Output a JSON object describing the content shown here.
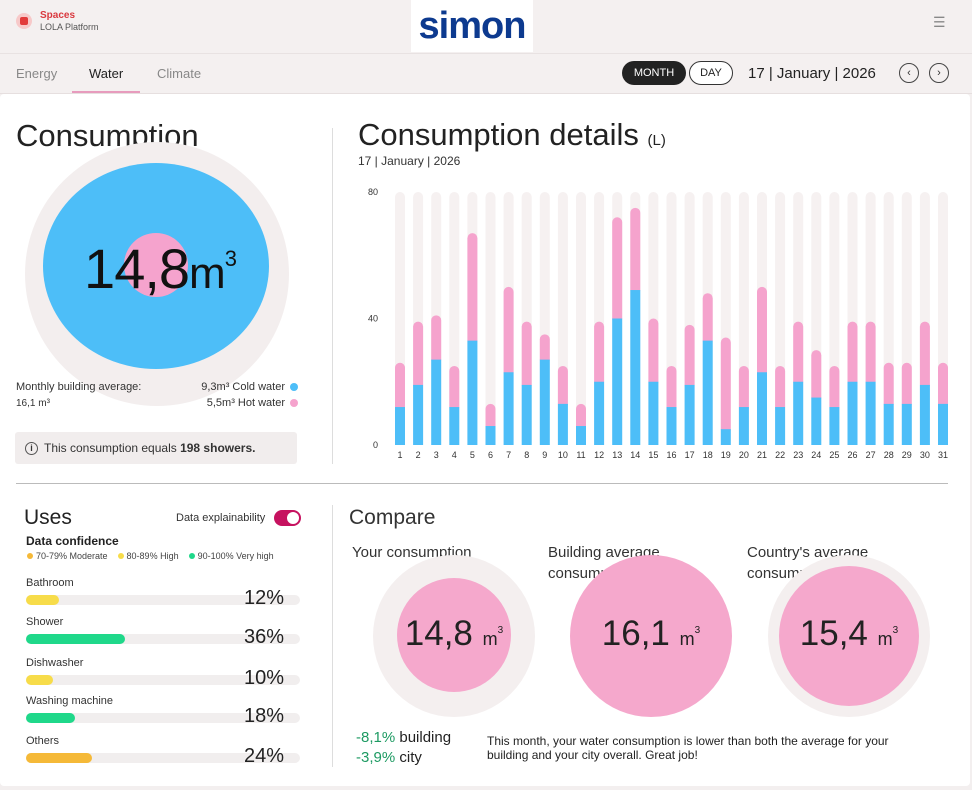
{
  "brand": {
    "name": "Spaces",
    "sub": "LOLA Platform",
    "logo": "simon"
  },
  "tabs": [
    {
      "label": "Energy",
      "active": false
    },
    {
      "label": "Water",
      "active": true
    },
    {
      "label": "Climate",
      "active": false
    }
  ],
  "period": {
    "month_label": "MONTH",
    "day_label": "DAY",
    "date": "17 | January | 2026"
  },
  "consumption": {
    "title": "Consumption",
    "value": "14,8",
    "unit": "m",
    "unit_sup": "3",
    "avg_label": "Monthly building average:",
    "avg_value": "16,1 m³",
    "cold_label": "9,3m³ Cold water",
    "hot_label": "5,5m³ Hot water",
    "info_pre": "This consumption equals ",
    "info_count": "198 showers."
  },
  "details": {
    "title": "Consumption details",
    "unit": "(L)",
    "date": "17 | January | 2026"
  },
  "chart_data": {
    "type": "bar",
    "stacked": true,
    "title": "Consumption details (L)",
    "xlabel": "",
    "ylabel": "",
    "ylim": [
      0,
      80
    ],
    "yticks": [
      0,
      40,
      80
    ],
    "categories": [
      "1",
      "2",
      "3",
      "4",
      "5",
      "6",
      "7",
      "8",
      "9",
      "10",
      "11",
      "12",
      "13",
      "14",
      "15",
      "16",
      "17",
      "18",
      "19",
      "20",
      "21",
      "22",
      "23",
      "24",
      "25",
      "26",
      "27",
      "28",
      "29",
      "30",
      "31"
    ],
    "series": [
      {
        "name": "Cold water",
        "color": "#4dbef8",
        "values": [
          12,
          19,
          27,
          12,
          33,
          6,
          23,
          19,
          27,
          13,
          6,
          20,
          40,
          49,
          20,
          12,
          19,
          33,
          5,
          12,
          23,
          12,
          20,
          15,
          12,
          20,
          20,
          13,
          13,
          19,
          13
        ]
      },
      {
        "name": "Hot water",
        "color": "#f5a3cd",
        "values": [
          14,
          20,
          14,
          13,
          34,
          7,
          27,
          20,
          8,
          12,
          7,
          19,
          32,
          26,
          20,
          13,
          19,
          15,
          29,
          13,
          27,
          13,
          19,
          15,
          13,
          19,
          19,
          13,
          13,
          20,
          13
        ]
      }
    ]
  },
  "uses": {
    "title": "Uses",
    "explain_label": "Data explainability",
    "dc_title": "Data confidence",
    "legend": [
      {
        "label": "70-79% Moderate",
        "color": "#f5b938"
      },
      {
        "label": "80-89% High",
        "color": "#f7dc4a"
      },
      {
        "label": "90-100% Very high",
        "color": "#1fd88a"
      }
    ],
    "items": [
      {
        "label": "Bathroom",
        "pct": "12%",
        "value": 0.12,
        "color": "#f7dc4a"
      },
      {
        "label": "Shower",
        "pct": "36%",
        "value": 0.36,
        "color": "#1fd88a"
      },
      {
        "label": "Dishwasher",
        "pct": "10%",
        "value": 0.1,
        "color": "#f7dc4a"
      },
      {
        "label": "Washing machine",
        "pct": "18%",
        "value": 0.18,
        "color": "#1fd88a"
      },
      {
        "label": "Others",
        "pct": "24%",
        "value": 0.24,
        "color": "#f5b938"
      }
    ]
  },
  "compare": {
    "title": "Compare",
    "yours": {
      "label": "Your consumption",
      "value": "14,8",
      "unit": "m",
      "sup": "3"
    },
    "building": {
      "label1": "Building average",
      "label2": "consumption",
      "value": "16,1",
      "unit": "m",
      "sup": "3"
    },
    "country": {
      "label1": "Country's average",
      "label2": "consumption",
      "value": "15,4",
      "unit": "m",
      "sup": "3"
    },
    "diff_building_val": "-8,1%",
    "diff_building_lbl": " building",
    "diff_city_val": "-3,9%",
    "diff_city_lbl": " city",
    "message": "This month, your water consumption is lower than both the average for your building and your city overall. Great job!"
  }
}
